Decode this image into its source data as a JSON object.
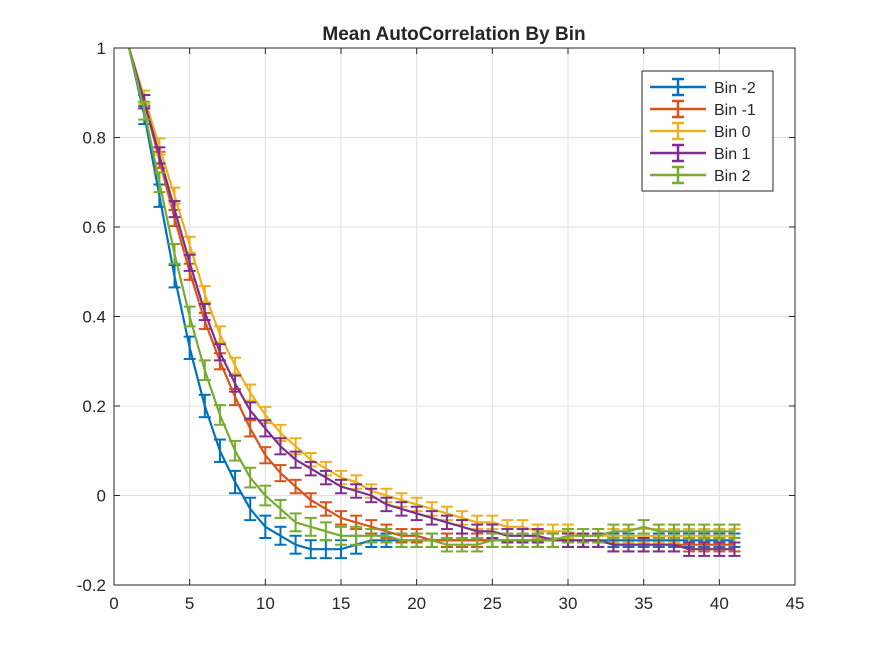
{
  "chart_data": {
    "type": "line",
    "title": "Mean AutoCorrelation By Bin",
    "xlabel": "",
    "ylabel": "",
    "xlim": [
      0,
      45
    ],
    "ylim": [
      -0.2,
      1
    ],
    "xticks": [
      0,
      5,
      10,
      15,
      20,
      25,
      30,
      35,
      40,
      45
    ],
    "yticks": [
      -0.2,
      0,
      0.2,
      0.4,
      0.6,
      0.8,
      1
    ],
    "xtick_labels": [
      "0",
      "5",
      "10",
      "15",
      "20",
      "25",
      "30",
      "35",
      "40",
      "45"
    ],
    "ytick_labels": [
      "-0.2",
      "0",
      "0.2",
      "0.4",
      "0.6",
      "0.8",
      "1"
    ],
    "grid": true,
    "legend_position": "top-right",
    "error_bars": true,
    "series": [
      {
        "name": "Bin -2",
        "color": "#0072BD",
        "x": [
          1,
          2,
          3,
          4,
          5,
          6,
          7,
          8,
          9,
          10,
          11,
          12,
          13,
          14,
          15,
          16,
          17,
          18,
          19,
          20,
          21,
          22,
          23,
          24,
          25,
          26,
          27,
          28,
          29,
          30,
          31,
          32,
          33,
          34,
          35,
          36,
          37,
          38,
          39,
          40,
          41
        ],
        "y": [
          1.0,
          0.85,
          0.67,
          0.49,
          0.33,
          0.2,
          0.1,
          0.03,
          -0.03,
          -0.07,
          -0.09,
          -0.11,
          -0.12,
          -0.12,
          -0.12,
          -0.11,
          -0.1,
          -0.1,
          -0.1,
          -0.1,
          -0.1,
          -0.1,
          -0.1,
          -0.1,
          -0.1,
          -0.1,
          -0.1,
          -0.1,
          -0.1,
          -0.1,
          -0.1,
          -0.1,
          -0.1,
          -0.1,
          -0.1,
          -0.1,
          -0.1,
          -0.1,
          -0.1,
          -0.1,
          -0.1
        ],
        "err": [
          0,
          0.02,
          0.025,
          0.025,
          0.025,
          0.025,
          0.025,
          0.025,
          0.025,
          0.025,
          0.02,
          0.02,
          0.02,
          0.02,
          0.02,
          0.02,
          0.015,
          0.015,
          0.015,
          0.015,
          0.015,
          0.015,
          0.015,
          0.015,
          0.015,
          0.015,
          0.015,
          0.015,
          0.015,
          0.015,
          0.015,
          0.015,
          0.015,
          0.015,
          0.015,
          0.015,
          0.015,
          0.015,
          0.015,
          0.015,
          0.015
        ]
      },
      {
        "name": "Bin -1",
        "color": "#D95319",
        "x": [
          1,
          2,
          3,
          4,
          5,
          6,
          7,
          8,
          9,
          10,
          11,
          12,
          13,
          14,
          15,
          16,
          17,
          18,
          19,
          20,
          21,
          22,
          23,
          24,
          25,
          26,
          27,
          28,
          29,
          30,
          31,
          32,
          33,
          34,
          35,
          36,
          37,
          38,
          39,
          40,
          41
        ],
        "y": [
          1.0,
          0.88,
          0.75,
          0.62,
          0.5,
          0.39,
          0.3,
          0.22,
          0.15,
          0.09,
          0.05,
          0.02,
          -0.01,
          -0.03,
          -0.05,
          -0.06,
          -0.07,
          -0.08,
          -0.09,
          -0.09,
          -0.1,
          -0.1,
          -0.1,
          -0.1,
          -0.1,
          -0.1,
          -0.1,
          -0.1,
          -0.1,
          -0.1,
          -0.1,
          -0.1,
          -0.11,
          -0.11,
          -0.11,
          -0.11,
          -0.11,
          -0.11,
          -0.11,
          -0.11,
          -0.11
        ],
        "err": [
          0,
          0.015,
          0.018,
          0.018,
          0.018,
          0.018,
          0.018,
          0.018,
          0.018,
          0.018,
          0.018,
          0.015,
          0.015,
          0.015,
          0.015,
          0.015,
          0.015,
          0.015,
          0.015,
          0.015,
          0.015,
          0.015,
          0.015,
          0.015,
          0.015,
          0.015,
          0.015,
          0.015,
          0.015,
          0.015,
          0.015,
          0.015,
          0.015,
          0.015,
          0.015,
          0.015,
          0.015,
          0.015,
          0.015,
          0.015,
          0.015
        ]
      },
      {
        "name": "Bin 0",
        "color": "#EDB120",
        "x": [
          1,
          2,
          3,
          4,
          5,
          6,
          7,
          8,
          9,
          10,
          11,
          12,
          13,
          14,
          15,
          16,
          17,
          18,
          19,
          20,
          21,
          22,
          23,
          24,
          25,
          26,
          27,
          28,
          29,
          30,
          31,
          32,
          33,
          34,
          35,
          36,
          37,
          38,
          39,
          40,
          41
        ],
        "y": [
          1.0,
          0.89,
          0.78,
          0.67,
          0.56,
          0.45,
          0.36,
          0.29,
          0.23,
          0.18,
          0.14,
          0.11,
          0.08,
          0.06,
          0.04,
          0.03,
          0.01,
          0.0,
          -0.01,
          -0.02,
          -0.03,
          -0.04,
          -0.05,
          -0.06,
          -0.06,
          -0.07,
          -0.07,
          -0.08,
          -0.08,
          -0.08,
          -0.09,
          -0.09,
          -0.09,
          -0.09,
          -0.09,
          -0.09,
          -0.09,
          -0.09,
          -0.09,
          -0.09,
          -0.09
        ],
        "err": [
          0,
          0.015,
          0.018,
          0.018,
          0.018,
          0.018,
          0.018,
          0.018,
          0.018,
          0.018,
          0.018,
          0.018,
          0.015,
          0.015,
          0.015,
          0.015,
          0.015,
          0.015,
          0.015,
          0.015,
          0.015,
          0.015,
          0.015,
          0.015,
          0.015,
          0.015,
          0.015,
          0.015,
          0.015,
          0.015,
          0.015,
          0.015,
          0.015,
          0.015,
          0.015,
          0.015,
          0.015,
          0.015,
          0.015,
          0.015,
          0.015
        ]
      },
      {
        "name": "Bin 1",
        "color": "#7E2F8E",
        "x": [
          1,
          2,
          3,
          4,
          5,
          6,
          7,
          8,
          9,
          10,
          11,
          12,
          13,
          14,
          15,
          16,
          17,
          18,
          19,
          20,
          21,
          22,
          23,
          24,
          25,
          26,
          27,
          28,
          29,
          30,
          31,
          32,
          33,
          34,
          35,
          36,
          37,
          38,
          39,
          40,
          41
        ],
        "y": [
          1.0,
          0.88,
          0.76,
          0.64,
          0.52,
          0.41,
          0.32,
          0.25,
          0.19,
          0.15,
          0.11,
          0.08,
          0.06,
          0.04,
          0.02,
          0.01,
          0.0,
          -0.02,
          -0.03,
          -0.04,
          -0.05,
          -0.06,
          -0.07,
          -0.08,
          -0.08,
          -0.09,
          -0.09,
          -0.09,
          -0.1,
          -0.1,
          -0.1,
          -0.1,
          -0.11,
          -0.11,
          -0.11,
          -0.11,
          -0.11,
          -0.12,
          -0.12,
          -0.12,
          -0.12
        ],
        "err": [
          0,
          0.015,
          0.018,
          0.018,
          0.018,
          0.018,
          0.018,
          0.018,
          0.018,
          0.018,
          0.018,
          0.018,
          0.015,
          0.015,
          0.015,
          0.015,
          0.015,
          0.015,
          0.015,
          0.015,
          0.015,
          0.015,
          0.015,
          0.015,
          0.015,
          0.015,
          0.015,
          0.015,
          0.015,
          0.015,
          0.015,
          0.015,
          0.015,
          0.015,
          0.015,
          0.015,
          0.015,
          0.015,
          0.015,
          0.015,
          0.015
        ]
      },
      {
        "name": "Bin 2",
        "color": "#77AC30",
        "x": [
          1,
          2,
          3,
          4,
          5,
          6,
          7,
          8,
          9,
          10,
          11,
          12,
          13,
          14,
          15,
          16,
          17,
          18,
          19,
          20,
          21,
          22,
          23,
          24,
          25,
          26,
          27,
          28,
          29,
          30,
          31,
          32,
          33,
          34,
          35,
          36,
          37,
          38,
          39,
          40,
          41
        ],
        "y": [
          1.0,
          0.86,
          0.7,
          0.54,
          0.4,
          0.28,
          0.18,
          0.1,
          0.04,
          0.0,
          -0.03,
          -0.06,
          -0.07,
          -0.08,
          -0.09,
          -0.09,
          -0.09,
          -0.09,
          -0.1,
          -0.1,
          -0.1,
          -0.11,
          -0.11,
          -0.11,
          -0.1,
          -0.1,
          -0.1,
          -0.1,
          -0.1,
          -0.09,
          -0.09,
          -0.09,
          -0.08,
          -0.08,
          -0.07,
          -0.08,
          -0.08,
          -0.08,
          -0.08,
          -0.08,
          -0.08
        ],
        "err": [
          0,
          0.02,
          0.022,
          0.022,
          0.022,
          0.022,
          0.022,
          0.022,
          0.022,
          0.022,
          0.02,
          0.02,
          0.02,
          0.02,
          0.02,
          0.02,
          0.015,
          0.015,
          0.015,
          0.015,
          0.015,
          0.015,
          0.015,
          0.015,
          0.015,
          0.015,
          0.015,
          0.015,
          0.015,
          0.015,
          0.015,
          0.015,
          0.015,
          0.015,
          0.015,
          0.015,
          0.015,
          0.015,
          0.015,
          0.015,
          0.015
        ]
      }
    ]
  }
}
